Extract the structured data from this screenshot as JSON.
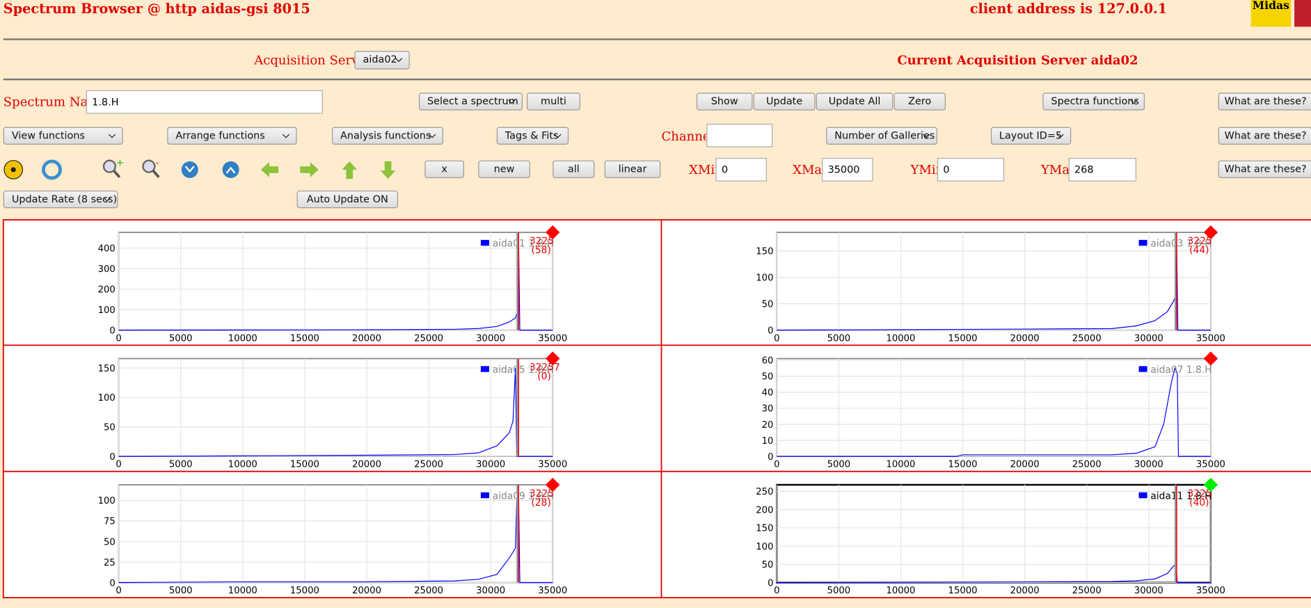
{
  "header": {
    "title": "Spectrum Browser @ http aidas-gsi 8015",
    "client": "client address is 127.0.0.1",
    "logo": "Midas"
  },
  "acquisition": {
    "label": "Acquisition Servers",
    "server": "aida02",
    "current": "Current Acquisition Server aida02"
  },
  "controls": {
    "spectrum_label": "Spectrum Name:",
    "spectrum_name": "1.8.H",
    "select_spectrum": "Select a spectrum",
    "multi": "multi",
    "show": "Show",
    "update": "Update",
    "update_all": "Update All",
    "zero": "Zero",
    "spectra_functions": "Spectra functions",
    "help": "What are these?",
    "view_functions": "View functions",
    "arrange_functions": "Arrange functions",
    "analysis_functions": "Analysis functions",
    "tags_fits": "Tags & Fits",
    "channel_label": "Channel:",
    "galleries": "Number of Galleries",
    "layout": "Layout ID=5",
    "x": "x",
    "new": "new",
    "all": "all",
    "linear": "linear",
    "xmin_label": "XMin",
    "xmin": "0",
    "xmax_label": "XMax",
    "xmax": "35000",
    "ymin_label": "YMin",
    "ymin": "0",
    "ymax_label": "YMax",
    "ymax": "268",
    "update_rate": "Update Rate (8 secs)",
    "auto_update": "Auto Update ON"
  },
  "chart_data": [
    {
      "type": "line",
      "xlim": [
        0,
        35000
      ],
      "ylim": [
        0,
        477
      ],
      "xticks": [
        0,
        5000,
        10000,
        15000,
        20000,
        25000,
        30000,
        35000
      ],
      "yticks": [
        0,
        100,
        200,
        300,
        400
      ],
      "grid": true,
      "series": [
        {
          "name": "aida01 1.8.H",
          "color": "#0000ff",
          "x": [
            0,
            10000,
            20000,
            27000,
            29000,
            30500,
            31500,
            32000,
            32200,
            32250,
            32350,
            33000,
            35000
          ],
          "values": [
            0,
            1,
            2,
            4,
            8,
            18,
            40,
            60,
            100,
            450,
            0,
            0,
            0
          ]
        }
      ],
      "cursor": {
        "x": 32250,
        "label": "3225",
        "count": "(58)"
      },
      "marker_color": "#ff0000",
      "selected": false
    },
    {
      "type": "line",
      "xlim": [
        0,
        35000
      ],
      "ylim": [
        0,
        185
      ],
      "xticks": [
        0,
        5000,
        10000,
        15000,
        20000,
        25000,
        30000,
        35000
      ],
      "yticks": [
        0,
        50,
        100,
        150
      ],
      "grid": true,
      "series": [
        {
          "name": "aida03 1.8.H",
          "color": "#0000ff",
          "x": [
            0,
            10000,
            20000,
            27000,
            29000,
            30500,
            31500,
            32000,
            32200,
            32250,
            32350,
            33000,
            35000
          ],
          "values": [
            0,
            1,
            2,
            3,
            8,
            18,
            35,
            55,
            65,
            170,
            0,
            0,
            0
          ]
        }
      ],
      "cursor": {
        "x": 32250,
        "label": "3225",
        "count": "(44)"
      },
      "marker_color": "#ff0000",
      "selected": false
    },
    {
      "type": "line",
      "xlim": [
        0,
        35000
      ],
      "ylim": [
        0,
        166
      ],
      "xticks": [
        0,
        5000,
        10000,
        15000,
        20000,
        25000,
        30000,
        35000
      ],
      "yticks": [
        0,
        50,
        100,
        150
      ],
      "grid": true,
      "series": [
        {
          "name": "aida05 1.8.H",
          "color": "#0000ff",
          "x": [
            0,
            10000,
            20000,
            27000,
            29000,
            30500,
            31500,
            31800,
            32000,
            32100,
            32200,
            33000,
            35000
          ],
          "values": [
            0,
            1,
            2,
            3,
            6,
            18,
            40,
            60,
            150,
            0,
            0,
            0,
            0
          ]
        }
      ],
      "cursor": {
        "x": 32250,
        "label": "32257",
        "count": "(0)"
      },
      "marker_color": "#ff0000",
      "selected": false
    },
    {
      "type": "line",
      "xlim": [
        0,
        35000
      ],
      "ylim": [
        0,
        61
      ],
      "xticks": [
        0,
        5000,
        10000,
        15000,
        20000,
        25000,
        30000,
        35000
      ],
      "yticks": [
        0,
        10,
        20,
        30,
        40,
        50,
        60
      ],
      "grid": true,
      "series": [
        {
          "name": "aida07 1.8.H",
          "color": "#0000ff",
          "x": [
            0,
            14500,
            15000,
            27000,
            29000,
            30500,
            31200,
            31800,
            32100,
            32300,
            32400,
            33000,
            35000
          ],
          "values": [
            0,
            0,
            1,
            1,
            2,
            6,
            20,
            45,
            55,
            52,
            0,
            0,
            0
          ]
        }
      ],
      "marker_color": "#ff0000",
      "selected": false
    },
    {
      "type": "line",
      "xlim": [
        0,
        35000
      ],
      "ylim": [
        0,
        119
      ],
      "xticks": [
        0,
        5000,
        10000,
        15000,
        20000,
        25000,
        30000,
        35000
      ],
      "yticks": [
        0,
        25,
        50,
        75,
        100
      ],
      "grid": true,
      "series": [
        {
          "name": "aida09 1.8.H",
          "color": "#0000ff",
          "x": [
            0,
            10000,
            20000,
            27000,
            29000,
            30500,
            31500,
            32000,
            32100,
            32250,
            32350,
            33000,
            35000
          ],
          "values": [
            0,
            1,
            1,
            2,
            4,
            10,
            30,
            42,
            100,
            110,
            0,
            0,
            0
          ]
        }
      ],
      "cursor": {
        "x": 32250,
        "label": "3225",
        "count": "(28)"
      },
      "marker_color": "#ff0000",
      "selected": false
    },
    {
      "type": "line",
      "xlim": [
        0,
        35000
      ],
      "ylim": [
        0,
        268
      ],
      "xticks": [
        0,
        5000,
        10000,
        15000,
        20000,
        25000,
        30000,
        35000
      ],
      "yticks": [
        0,
        50,
        100,
        150,
        200,
        250
      ],
      "grid": true,
      "series": [
        {
          "name": "aida11 1.8.H",
          "color": "#0000ff",
          "x": [
            0,
            10000,
            20000,
            27000,
            29000,
            30500,
            31500,
            32000,
            32200,
            32300,
            32400,
            33000,
            35000
          ],
          "values": [
            0,
            1,
            2,
            3,
            5,
            10,
            25,
            45,
            50,
            0,
            0,
            0,
            0
          ]
        }
      ],
      "cursor": {
        "x": 32250,
        "label": "3225",
        "count": "(40)"
      },
      "marker_color": "#00ee00",
      "selected": true
    }
  ]
}
